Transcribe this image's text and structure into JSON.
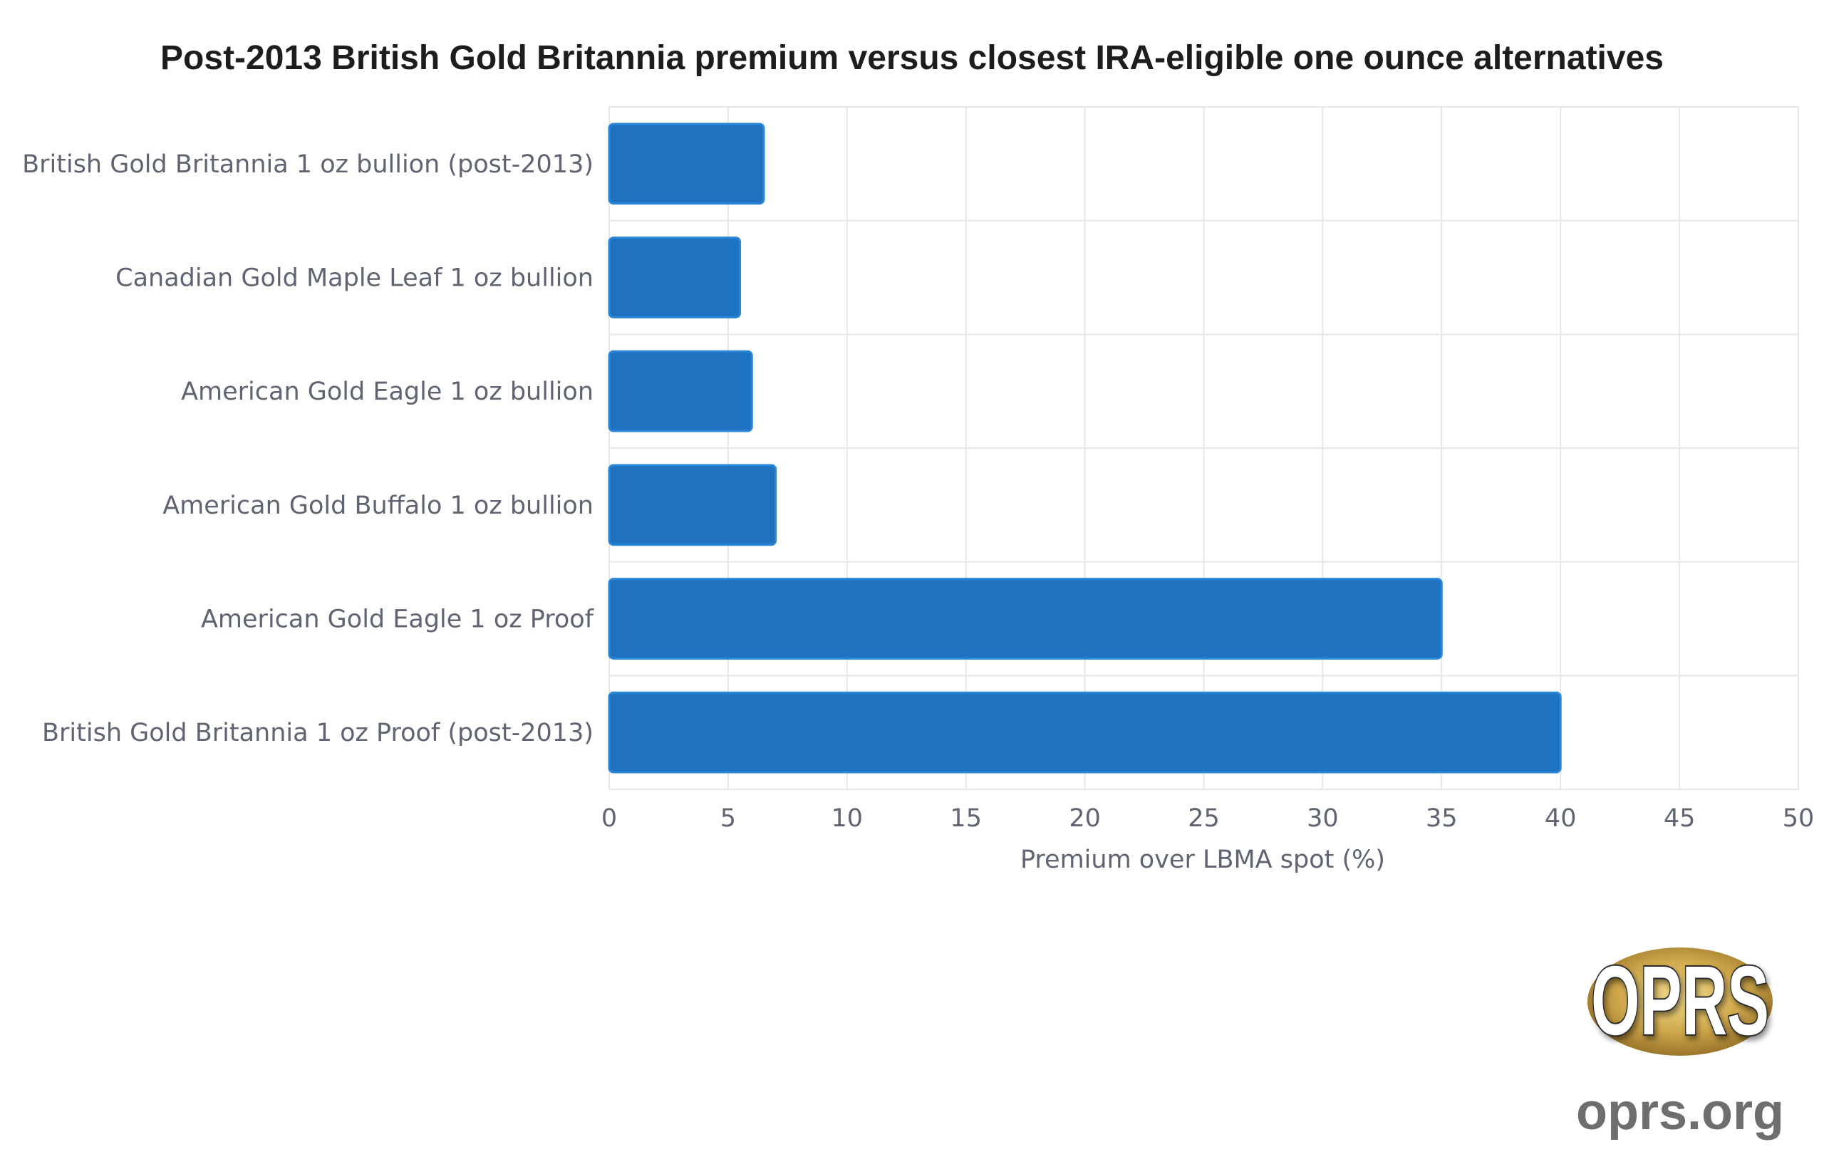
{
  "chart_data": {
    "type": "bar",
    "orientation": "horizontal",
    "title": "Post-2013 British Gold Britannia premium versus closest IRA-eligible one ounce alternatives",
    "categories": [
      "British Gold Britannia 1 oz bullion (post-2013)",
      "Canadian Gold Maple Leaf 1 oz bullion",
      "American Gold Eagle 1 oz bullion",
      "American Gold Buffalo 1 oz bullion",
      "American Gold Eagle 1 oz Proof",
      "British Gold Britannia 1 oz Proof (post-2013)"
    ],
    "values": [
      6.5,
      5.5,
      6,
      7,
      35,
      40
    ],
    "xlabel": "Premium over LBMA spot (%)",
    "ylabel": "",
    "xlim": [
      0,
      50
    ],
    "xticks": [
      0,
      5,
      10,
      15,
      20,
      25,
      30,
      35,
      40,
      45,
      50
    ],
    "grid": true,
    "legend": "none",
    "bar_color": "#1f72c0",
    "bar_edge_color": "#2a86d6"
  },
  "branding": {
    "logo_text": "OPRS",
    "site": "oprs.org"
  },
  "colors": {
    "text": "#5f6472",
    "title": "#1d1d1d",
    "grid": "#e6e6e6",
    "logo_gold": "#c9a24a"
  }
}
